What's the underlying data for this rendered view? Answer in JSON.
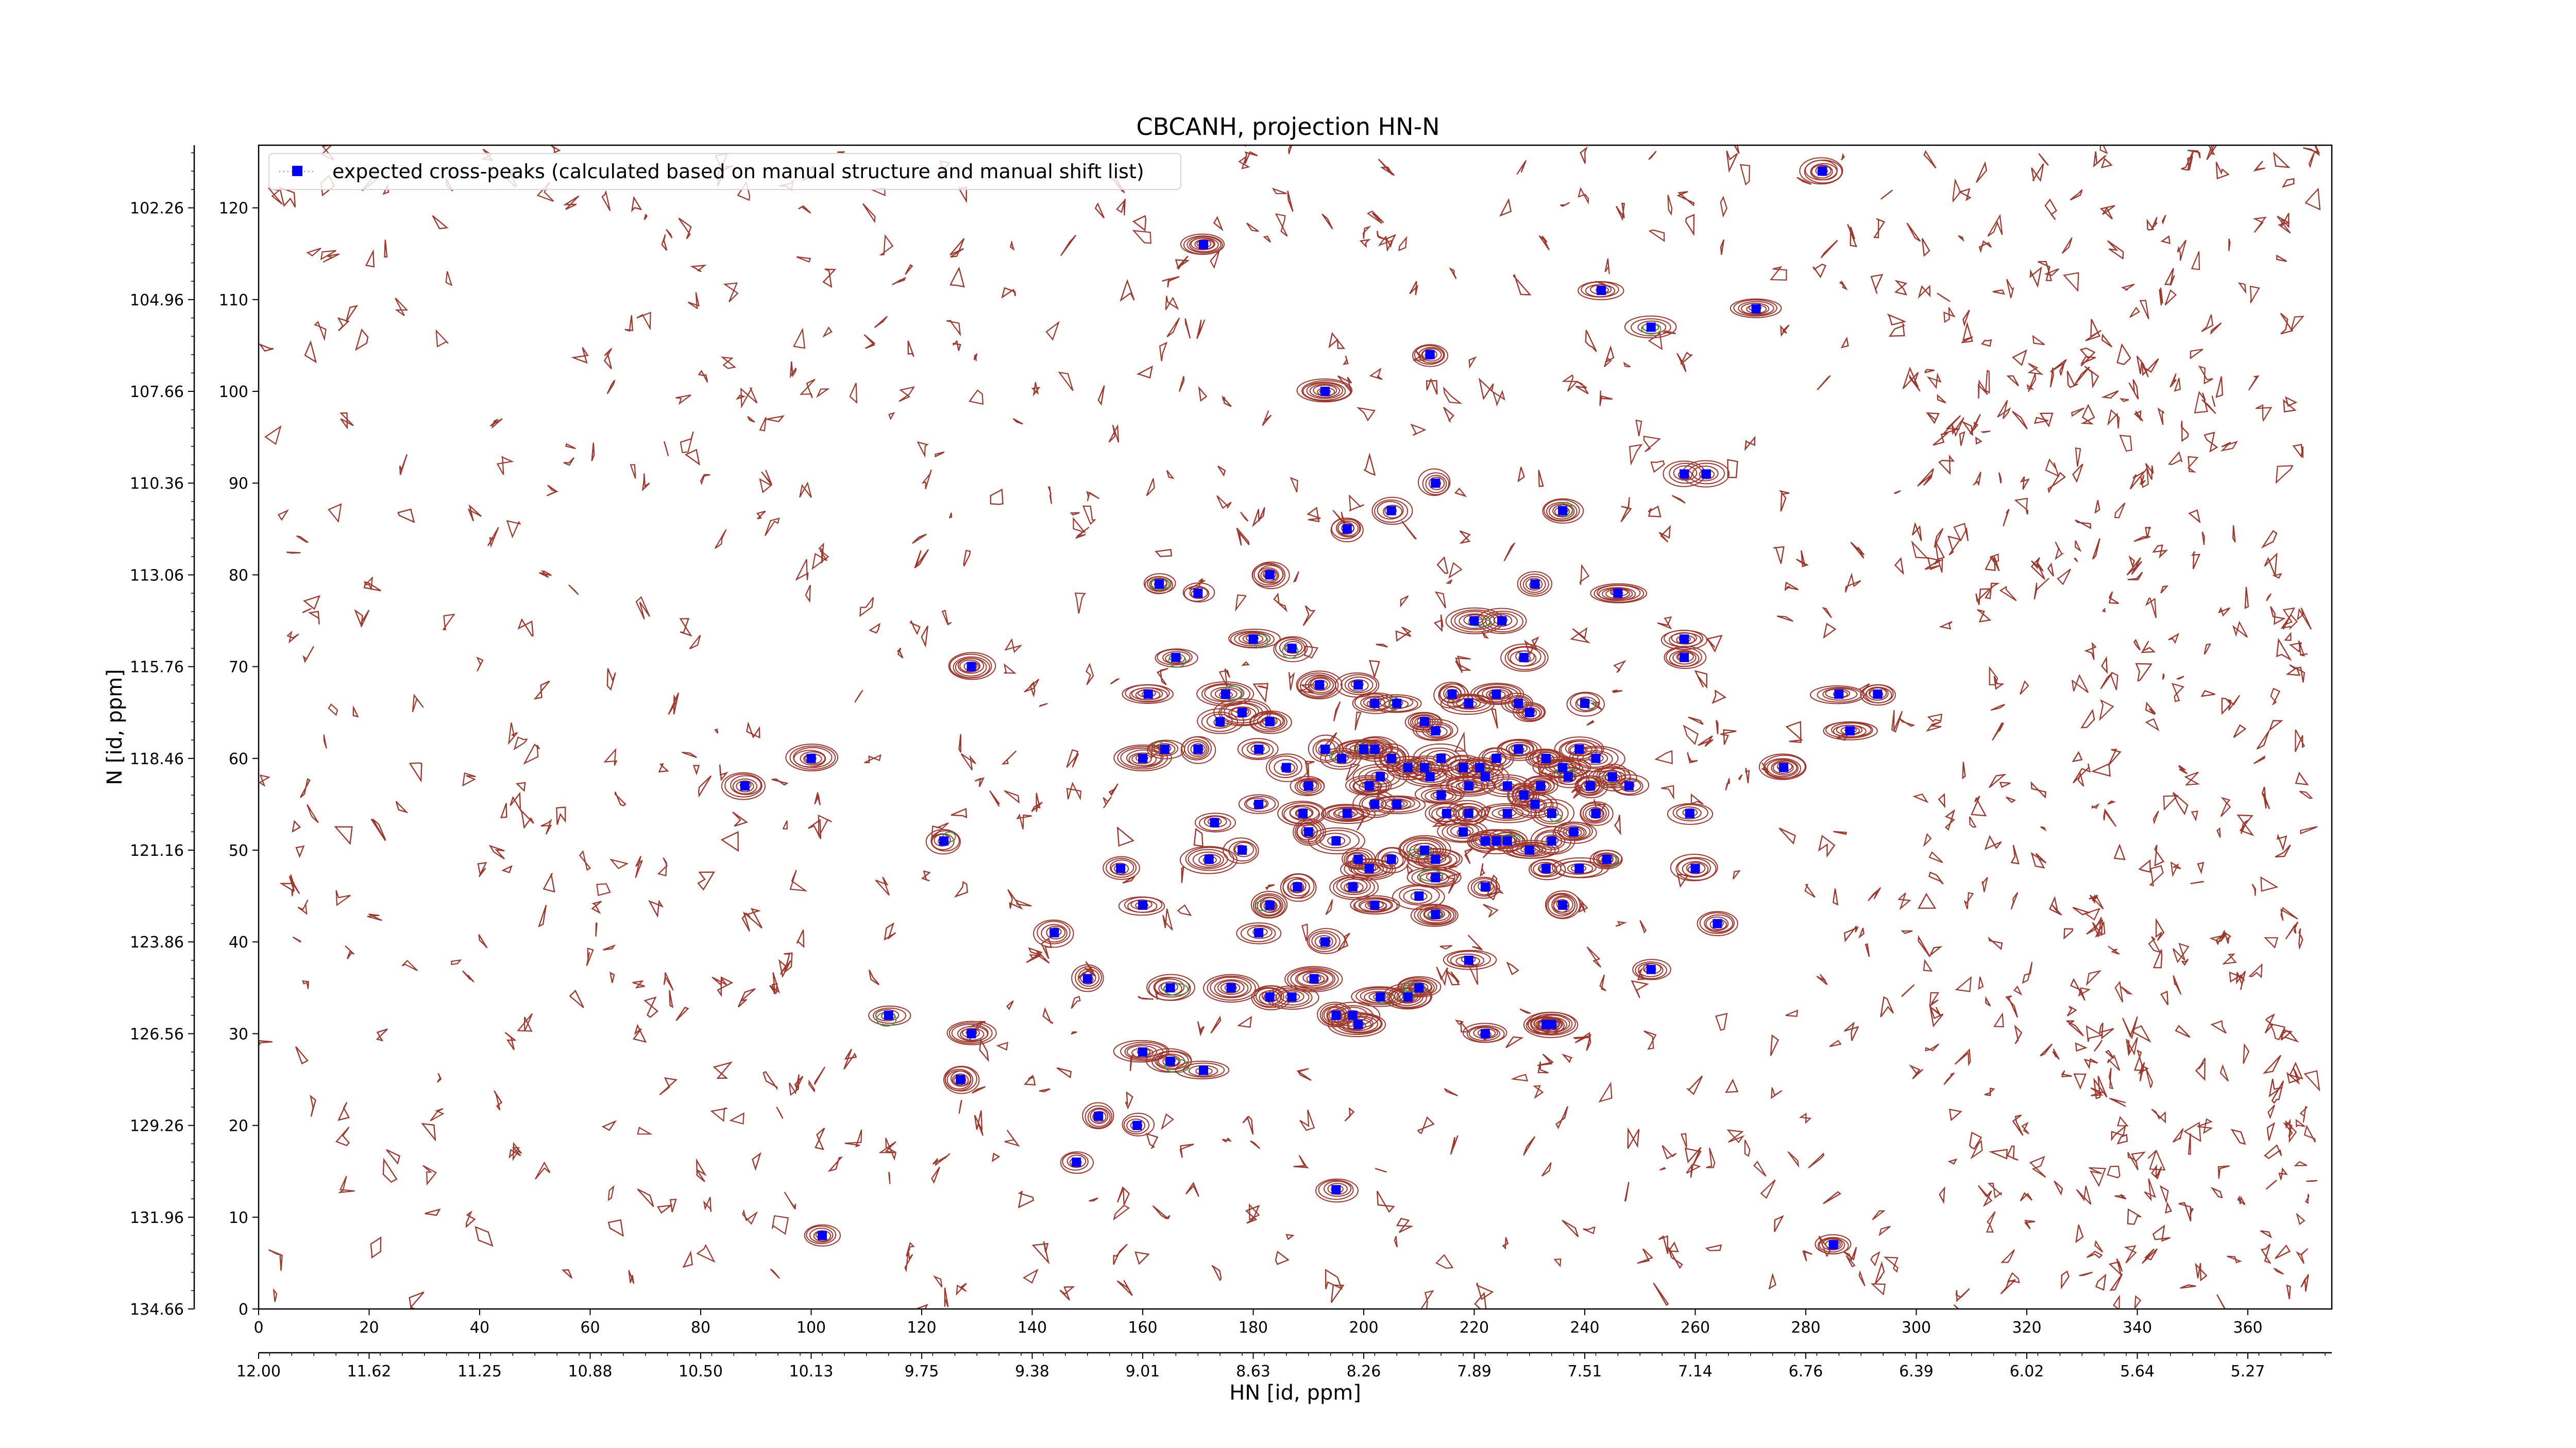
{
  "chart_data": {
    "type": "scatter",
    "title": "CBCANH, projection HN-N",
    "xlabel": "HN [id, ppm]",
    "ylabel": "N [id, ppm]",
    "xlim": [
      0,
      375
    ],
    "ylim": [
      0,
      127
    ],
    "x_ticks_index": [
      "0",
      "20",
      "40",
      "60",
      "80",
      "100",
      "120",
      "140",
      "160",
      "180",
      "200",
      "220",
      "240",
      "260",
      "280",
      "300",
      "320",
      "340",
      "360"
    ],
    "x_ticks_ppm": [
      "12.00",
      "11.62",
      "11.25",
      "10.88",
      "10.50",
      "10.13",
      "9.75",
      "9.38",
      "9.01",
      "8.63",
      "8.26",
      "7.89",
      "7.51",
      "7.14",
      "6.76",
      "6.39",
      "6.02",
      "5.64",
      "5.27"
    ],
    "y_ticks_index": [
      "0",
      "10",
      "20",
      "30",
      "40",
      "50",
      "60",
      "70",
      "80",
      "90",
      "100",
      "110",
      "120"
    ],
    "y_ticks_ppm": [
      "134.66",
      "131.96",
      "129.26",
      "126.56",
      "123.86",
      "121.16",
      "118.46",
      "115.76",
      "113.06",
      "110.36",
      "107.66",
      "104.96",
      "102.26"
    ],
    "legend": {
      "placement": "top-left",
      "entries": [
        "expected cross-peaks (calculated based on manual structure and manual shift list)"
      ]
    },
    "marker_color": "#0000ff",
    "contour_colors": {
      "positive": "#a0372c",
      "negative": "#3a9a4a"
    },
    "series": [
      {
        "name": "expected cross-peaks (calculated based on manual structure and manual shift list)",
        "points": [
          [
            283,
            124
          ],
          [
            171,
            116
          ],
          [
            243,
            111
          ],
          [
            252,
            107
          ],
          [
            271,
            109
          ],
          [
            212,
            104
          ],
          [
            193,
            100
          ],
          [
            258,
            91
          ],
          [
            262,
            91
          ],
          [
            213,
            90
          ],
          [
            205,
            87
          ],
          [
            236,
            87
          ],
          [
            197,
            85
          ],
          [
            183,
            80
          ],
          [
            163,
            79
          ],
          [
            170,
            78
          ],
          [
            231,
            79
          ],
          [
            246,
            78
          ],
          [
            225,
            75
          ],
          [
            220,
            75
          ],
          [
            258,
            73
          ],
          [
            258,
            71
          ],
          [
            180,
            73
          ],
          [
            187,
            72
          ],
          [
            166,
            71
          ],
          [
            229,
            71
          ],
          [
            240,
            66
          ],
          [
            192,
            68
          ],
          [
            199,
            68
          ],
          [
            202,
            66
          ],
          [
            206,
            66
          ],
          [
            211,
            64
          ],
          [
            213,
            63
          ],
          [
            216,
            67
          ],
          [
            219,
            66
          ],
          [
            224,
            67
          ],
          [
            228,
            66
          ],
          [
            230,
            65
          ],
          [
            161,
            67
          ],
          [
            174,
            64
          ],
          [
            178,
            65
          ],
          [
            183,
            64
          ],
          [
            175,
            67
          ],
          [
            181,
            61
          ],
          [
            193,
            61
          ],
          [
            196,
            60
          ],
          [
            200,
            61
          ],
          [
            202,
            61
          ],
          [
            205,
            60
          ],
          [
            208,
            59
          ],
          [
            211,
            59
          ],
          [
            214,
            60
          ],
          [
            218,
            59
          ],
          [
            221,
            59
          ],
          [
            224,
            60
          ],
          [
            228,
            61
          ],
          [
            233,
            60
          ],
          [
            236,
            59
          ],
          [
            239,
            61
          ],
          [
            242,
            60
          ],
          [
            245,
            58
          ],
          [
            248,
            57
          ],
          [
            164,
            61
          ],
          [
            170,
            61
          ],
          [
            160,
            60
          ],
          [
            186,
            59
          ],
          [
            190,
            57
          ],
          [
            201,
            57
          ],
          [
            203,
            58
          ],
          [
            212,
            58
          ],
          [
            214,
            56
          ],
          [
            219,
            57
          ],
          [
            222,
            58
          ],
          [
            226,
            57
          ],
          [
            229,
            56
          ],
          [
            232,
            57
          ],
          [
            237,
            58
          ],
          [
            241,
            57
          ],
          [
            245,
            58
          ],
          [
            276,
            59
          ],
          [
            288,
            63
          ],
          [
            88,
            57
          ],
          [
            100,
            60
          ],
          [
            181,
            55
          ],
          [
            189,
            54
          ],
          [
            197,
            54
          ],
          [
            202,
            55
          ],
          [
            206,
            55
          ],
          [
            215,
            54
          ],
          [
            219,
            54
          ],
          [
            222,
            51
          ],
          [
            226,
            54
          ],
          [
            231,
            55
          ],
          [
            234,
            54
          ],
          [
            238,
            52
          ],
          [
            242,
            54
          ],
          [
            173,
            53
          ],
          [
            190,
            52
          ],
          [
            195,
            51
          ],
          [
            213,
            49
          ],
          [
            218,
            52
          ],
          [
            224,
            51
          ],
          [
            226,
            51
          ],
          [
            234,
            51
          ],
          [
            239,
            48
          ],
          [
            244,
            49
          ],
          [
            172,
            49
          ],
          [
            178,
            50
          ],
          [
            199,
            49
          ],
          [
            201,
            48
          ],
          [
            205,
            49
          ],
          [
            211,
            50
          ],
          [
            213,
            47
          ],
          [
            222,
            46
          ],
          [
            230,
            50
          ],
          [
            233,
            48
          ],
          [
            259,
            54
          ],
          [
            260,
            48
          ],
          [
            156,
            48
          ],
          [
            124,
            51
          ],
          [
            183,
            44
          ],
          [
            188,
            46
          ],
          [
            198,
            46
          ],
          [
            202,
            44
          ],
          [
            210,
            45
          ],
          [
            213,
            43
          ],
          [
            236,
            44
          ],
          [
            160,
            44
          ],
          [
            181,
            41
          ],
          [
            193,
            40
          ],
          [
            219,
            38
          ],
          [
            252,
            37
          ],
          [
            264,
            42
          ],
          [
            144,
            41
          ],
          [
            150,
            36
          ],
          [
            165,
            35
          ],
          [
            176,
            35
          ],
          [
            183,
            34
          ],
          [
            187,
            34
          ],
          [
            191,
            36
          ],
          [
            195,
            32
          ],
          [
            198,
            32
          ],
          [
            199,
            31
          ],
          [
            203,
            34
          ],
          [
            208,
            34
          ],
          [
            210,
            35
          ],
          [
            222,
            30
          ],
          [
            233,
            31
          ],
          [
            234,
            31
          ],
          [
            114,
            32
          ],
          [
            129,
            30
          ],
          [
            160,
            28
          ],
          [
            165,
            27
          ],
          [
            171,
            26
          ],
          [
            127,
            25
          ],
          [
            152,
            21
          ],
          [
            159,
            20
          ],
          [
            148,
            16
          ],
          [
            195,
            13
          ],
          [
            102,
            8
          ],
          [
            285,
            7
          ],
          [
            129,
            70
          ],
          [
            286,
            67
          ],
          [
            293,
            67
          ]
        ]
      }
    ]
  }
}
